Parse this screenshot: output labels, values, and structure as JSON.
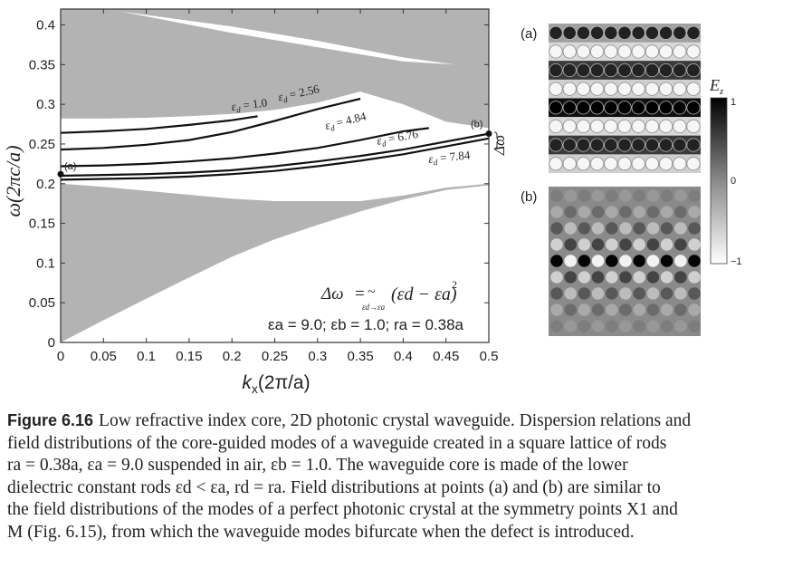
{
  "chart_data": {
    "type": "line",
    "xlabel": "k",
    "xlabel_sub": "x",
    "xlabel_rest": "(2π/a)",
    "ylabel": "ω(2πc/a)",
    "xlim": [
      0,
      0.5
    ],
    "ylim": [
      0,
      0.42
    ],
    "x_ticks": [
      0,
      0.05,
      0.1,
      0.15,
      0.2,
      0.25,
      0.3,
      0.35,
      0.4,
      0.45,
      0.5
    ],
    "x_tick_labels": [
      "0",
      "0.05",
      "0.1",
      "0.15",
      "0.2",
      "0.25",
      "0.3",
      "0.35",
      "0.4",
      "0.45",
      "0.5"
    ],
    "y_ticks": [
      0,
      0.05,
      0.1,
      0.15,
      0.2,
      0.25,
      0.3,
      0.35,
      0.4
    ],
    "y_tick_labels": [
      "0",
      "0.05",
      "0.1",
      "0.15",
      "0.2",
      "0.25",
      "0.3",
      "0.35",
      "0.4"
    ],
    "bands": {
      "lower_band_top": [
        [
          0,
          0.2
        ],
        [
          0.05,
          0.196
        ],
        [
          0.1,
          0.191
        ],
        [
          0.15,
          0.186
        ],
        [
          0.2,
          0.181
        ],
        [
          0.25,
          0.178
        ],
        [
          0.3,
          0.178
        ],
        [
          0.35,
          0.178
        ],
        [
          0.4,
          0.185
        ],
        [
          0.45,
          0.195
        ],
        [
          0.5,
          0.2
        ]
      ],
      "lower_band_bottom": [
        [
          0,
          0
        ],
        [
          0.1,
          0.1
        ],
        [
          0.2,
          0.2
        ],
        [
          0.25,
          0.25
        ],
        [
          0.3,
          0.3
        ],
        [
          0.35,
          0.35
        ],
        [
          0.4,
          0.4
        ],
        [
          0.42,
          0.42
        ]
      ],
      "upper_band_bottom": [
        [
          0,
          0.282
        ],
        [
          0.05,
          0.282
        ],
        [
          0.1,
          0.283
        ],
        [
          0.15,
          0.285
        ],
        [
          0.2,
          0.288
        ],
        [
          0.25,
          0.293
        ],
        [
          0.3,
          0.302
        ],
        [
          0.35,
          0.316
        ],
        [
          0.4,
          0.3
        ],
        [
          0.45,
          0.278
        ],
        [
          0.5,
          0.27
        ]
      ],
      "inner_gap": [
        [
          0.07,
          0.417
        ],
        [
          0.2,
          0.39
        ],
        [
          0.3,
          0.372
        ],
        [
          0.4,
          0.354
        ],
        [
          0.46,
          0.35
        ],
        [
          0.4,
          0.359
        ],
        [
          0.3,
          0.38
        ],
        [
          0.2,
          0.398
        ],
        [
          0.07,
          0.417
        ]
      ]
    },
    "series": [
      {
        "name": "εd = 1.0",
        "label_prefix": "ε",
        "label_sub": "d",
        "label_value": " = 1.0",
        "points": [
          [
            0,
            0.264
          ],
          [
            0.05,
            0.266
          ],
          [
            0.1,
            0.269
          ],
          [
            0.15,
            0.274
          ],
          [
            0.2,
            0.28
          ],
          [
            0.23,
            0.285
          ]
        ]
      },
      {
        "name": "εd = 2.56",
        "label_prefix": "ε",
        "label_sub": "d",
        "label_value": " = 2.56",
        "points": [
          [
            0,
            0.243
          ],
          [
            0.05,
            0.245
          ],
          [
            0.1,
            0.249
          ],
          [
            0.15,
            0.255
          ],
          [
            0.2,
            0.265
          ],
          [
            0.25,
            0.279
          ],
          [
            0.3,
            0.294
          ],
          [
            0.35,
            0.307
          ]
        ]
      },
      {
        "name": "εd = 4.84",
        "label_prefix": "ε",
        "label_sub": "d",
        "label_value": " = 4.84",
        "points": [
          [
            0,
            0.222
          ],
          [
            0.05,
            0.223
          ],
          [
            0.1,
            0.225
          ],
          [
            0.15,
            0.228
          ],
          [
            0.2,
            0.232
          ],
          [
            0.25,
            0.238
          ],
          [
            0.3,
            0.245
          ],
          [
            0.35,
            0.255
          ],
          [
            0.4,
            0.266
          ],
          [
            0.43,
            0.27
          ]
        ]
      },
      {
        "name": "εd = 6.76",
        "label_prefix": "ε",
        "label_sub": "d",
        "label_value": " = 6.76",
        "points": [
          [
            0,
            0.21
          ],
          [
            0.05,
            0.211
          ],
          [
            0.1,
            0.212
          ],
          [
            0.15,
            0.214
          ],
          [
            0.2,
            0.217
          ],
          [
            0.25,
            0.222
          ],
          [
            0.3,
            0.228
          ],
          [
            0.35,
            0.235
          ],
          [
            0.4,
            0.243
          ],
          [
            0.45,
            0.253
          ],
          [
            0.5,
            0.263
          ]
        ]
      },
      {
        "name": "εd = 7.84",
        "label_prefix": "ε",
        "label_sub": "d",
        "label_value": " = 7.84",
        "points": [
          [
            0,
            0.205
          ],
          [
            0.05,
            0.206
          ],
          [
            0.1,
            0.207
          ],
          [
            0.15,
            0.209
          ],
          [
            0.2,
            0.212
          ],
          [
            0.25,
            0.216
          ],
          [
            0.3,
            0.222
          ],
          [
            0.35,
            0.229
          ],
          [
            0.4,
            0.237
          ],
          [
            0.45,
            0.247
          ],
          [
            0.5,
            0.257
          ]
        ]
      }
    ],
    "point_markers": [
      {
        "label": "(a)",
        "x": 0,
        "y": 0.212
      },
      {
        "label": "(b)",
        "x": 0.5,
        "y": 0.263
      }
    ],
    "delta_omega_label": "Δω",
    "annotation_formula": {
      "lhs": "Δω",
      "eq": "=",
      "tilde": "~",
      "under": "εd→εa",
      "rhs": "(εd − εa)",
      "power": "2"
    },
    "annotation_params": "εa = 9.0; εb = 1.0; ra = 0.38a"
  },
  "field_maps": {
    "panel_a_label": "(a)",
    "panel_b_label": "(b)",
    "colorbar_title": "E",
    "colorbar_title_sub": "z",
    "colorbar_ticks": [
      "1",
      "0",
      "−1"
    ],
    "colors": {
      "band_gray": "#b3b3b3",
      "dark": "#111111",
      "light": "#f4f4f4",
      "mid": "#8c8c8c"
    }
  },
  "caption": {
    "figure_label": "Figure 6.16",
    "lines": [
      "Low refractive index core, 2D photonic crystal waveguide. Dispersion relations and",
      "field distributions of the core-guided modes of a waveguide created in a square lattice of rods",
      "ra = 0.38a, εa = 9.0 suspended in air, εb = 1.0. The waveguide core is made of the lower",
      "dielectric constant rods εd < εa, rd = ra. Field distributions at points (a) and (b) are similar to",
      "the field distributions of the modes of a perfect photonic crystal at the symmetry points X1 and",
      "M (Fig. 6.15), from which the waveguide modes bifurcate when the defect is introduced."
    ]
  }
}
